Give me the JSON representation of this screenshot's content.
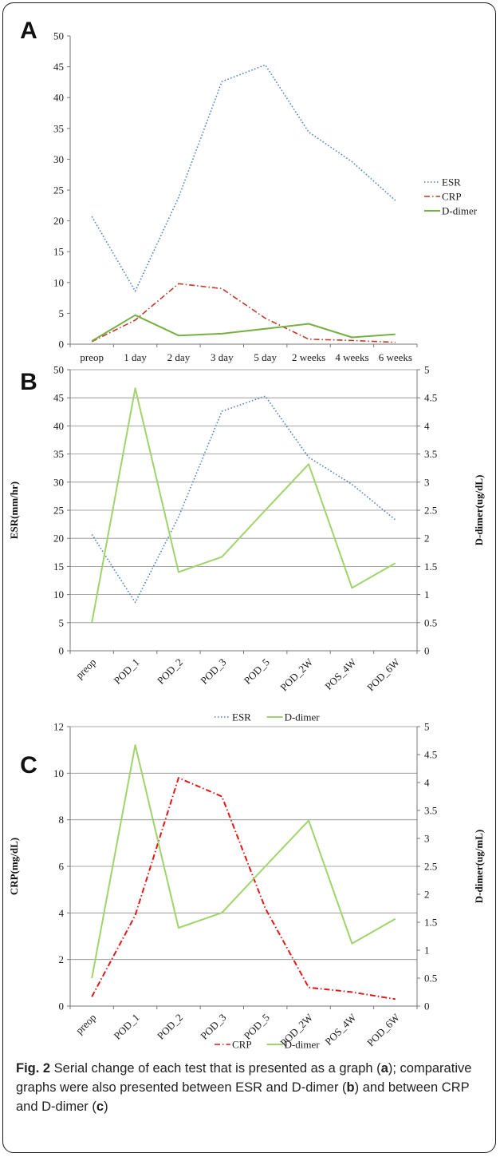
{
  "caption": {
    "label": "Fig. 2",
    "text_1": " Serial change of each test that is presented as a graph (",
    "ref_a": "a",
    "text_2": "); comparative graphs were also presented between ESR and D-dimer (",
    "ref_b": "b",
    "text_3": ") and between CRP and D-dimer (",
    "ref_c": "c",
    "text_4": ")"
  },
  "colors": {
    "ESR": "#4a7ec4",
    "CRP": "#c0392b",
    "CRP_C": "#e01818",
    "Ddimer": "#76b043",
    "Ddimer_light": "#9fd46a",
    "grid": "#8a8a8a"
  },
  "chart_data": [
    {
      "panel": "A",
      "type": "line",
      "categories": [
        "preop",
        "1 day",
        "2 day",
        "3 day",
        "5 day",
        "2 weeks",
        "4 weeks",
        "6 weeks"
      ],
      "ylim": [
        0,
        50
      ],
      "yticks": [
        "0",
        "5",
        "10",
        "15",
        "20",
        "25",
        "30",
        "35",
        "40",
        "45",
        "50"
      ],
      "grid": false,
      "legend": "right",
      "series": [
        {
          "name": "ESR",
          "style": "dotted",
          "values": [
            20.7,
            8.6,
            23.8,
            42.6,
            45.3,
            34.4,
            29.6,
            23.3
          ]
        },
        {
          "name": "CRP",
          "style": "dash-dot",
          "values": [
            0.4,
            3.9,
            9.8,
            9.0,
            4.2,
            0.8,
            0.6,
            0.3
          ]
        },
        {
          "name": "D-dimer",
          "style": "solid",
          "values": [
            0.5,
            4.7,
            1.4,
            1.7,
            2.5,
            3.3,
            1.1,
            1.6
          ]
        }
      ]
    },
    {
      "panel": "B",
      "type": "line",
      "categories": [
        "preop",
        "POD_1",
        "POD_2",
        "POD_3",
        "POD_5",
        "POD_2W",
        "POS_4W",
        "POD_6W"
      ],
      "ylabel": "ESR(mm/hr)",
      "y2label": "D-dimer(ug/dL)",
      "ylim": [
        0,
        50
      ],
      "y2lim": [
        0,
        5
      ],
      "yticks": [
        "0",
        "5",
        "10",
        "15",
        "20",
        "25",
        "30",
        "35",
        "40",
        "45",
        "50"
      ],
      "y2ticks": [
        "0",
        "0.5",
        "1",
        "1.5",
        "2",
        "2.5",
        "3",
        "3.5",
        "4",
        "4.5",
        "5"
      ],
      "grid": true,
      "legend": "bottom",
      "series": [
        {
          "name": "ESR",
          "axis": "left",
          "style": "dotted",
          "values": [
            20.7,
            8.6,
            23.8,
            42.6,
            45.3,
            34.4,
            29.6,
            23.3
          ]
        },
        {
          "name": "D-dimer",
          "axis": "right",
          "style": "solid",
          "values": [
            0.5,
            4.67,
            1.4,
            1.67,
            2.5,
            3.32,
            1.12,
            1.56
          ]
        }
      ]
    },
    {
      "panel": "C",
      "type": "line",
      "categories": [
        "preop",
        "POD_1",
        "POD_2",
        "POD_3",
        "POD_5",
        "POD_2W",
        "POS_4W",
        "POD_6W"
      ],
      "ylabel": "CRP(mg/dL)",
      "y2label": "D-dimer(ug/mL)",
      "ylim": [
        0,
        12
      ],
      "y2lim": [
        0,
        5
      ],
      "yticks": [
        "0",
        "2",
        "4",
        "6",
        "8",
        "10",
        "12"
      ],
      "y2ticks": [
        "0",
        "0.5",
        "1",
        "1.5",
        "2",
        "2.5",
        "3",
        "3.5",
        "4",
        "4.5",
        "5"
      ],
      "grid": true,
      "legend": "bottom",
      "series": [
        {
          "name": "CRP",
          "axis": "left",
          "style": "dash-dot",
          "values": [
            0.4,
            3.9,
            9.8,
            9.0,
            4.2,
            0.8,
            0.6,
            0.3
          ]
        },
        {
          "name": "D-dimer",
          "axis": "right",
          "style": "solid",
          "values": [
            0.5,
            4.67,
            1.4,
            1.67,
            2.5,
            3.32,
            1.12,
            1.56
          ]
        }
      ]
    }
  ]
}
